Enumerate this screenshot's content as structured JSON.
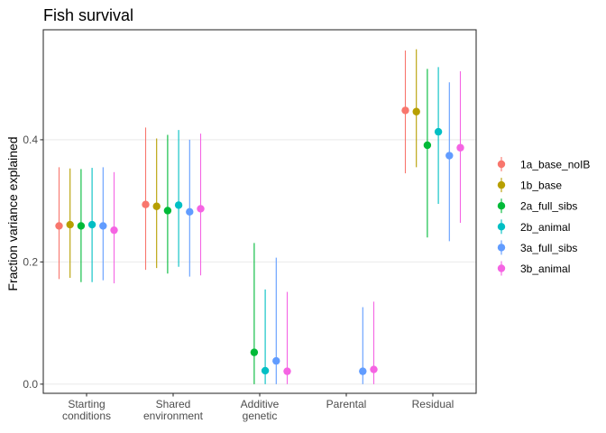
{
  "chart_data": {
    "type": "pointrange",
    "title": "Fish survival",
    "xlabel": "",
    "ylabel": "Fraction variance explained",
    "ylim": [
      -0.015,
      0.58
    ],
    "yticks": [
      0.0,
      0.2,
      0.4
    ],
    "ytick_labels": [
      "0.0",
      "0.2",
      "0.4"
    ],
    "grid": true,
    "legend_position": "right",
    "categories": [
      [
        "Starting",
        "conditions"
      ],
      [
        "Shared",
        "environment"
      ],
      [
        "Additive",
        "genetic"
      ],
      [
        "Parental"
      ],
      [
        "Residual"
      ]
    ],
    "series": [
      {
        "name": "1a_base_noIB",
        "color": "#F8766D",
        "points": [
          {
            "category": 0,
            "value": 0.259,
            "lower": 0.172,
            "upper": 0.355
          },
          {
            "category": 1,
            "value": 0.294,
            "lower": 0.187,
            "upper": 0.42
          },
          {
            "category": 4,
            "value": 0.448,
            "lower": 0.345,
            "upper": 0.546
          }
        ]
      },
      {
        "name": "1b_base",
        "color": "#B79F00",
        "points": [
          {
            "category": 0,
            "value": 0.261,
            "lower": 0.174,
            "upper": 0.353
          },
          {
            "category": 1,
            "value": 0.291,
            "lower": 0.19,
            "upper": 0.402
          },
          {
            "category": 4,
            "value": 0.446,
            "lower": 0.355,
            "upper": 0.548
          }
        ]
      },
      {
        "name": "2a_full_sibs",
        "color": "#00BA38",
        "points": [
          {
            "category": 0,
            "value": 0.259,
            "lower": 0.167,
            "upper": 0.352
          },
          {
            "category": 1,
            "value": 0.284,
            "lower": 0.181,
            "upper": 0.408
          },
          {
            "category": 2,
            "value": 0.052,
            "lower": 0.0,
            "upper": 0.231
          },
          {
            "category": 4,
            "value": 0.391,
            "lower": 0.24,
            "upper": 0.516
          }
        ]
      },
      {
        "name": "2b_animal",
        "color": "#00BFC4",
        "points": [
          {
            "category": 0,
            "value": 0.261,
            "lower": 0.167,
            "upper": 0.354
          },
          {
            "category": 1,
            "value": 0.293,
            "lower": 0.192,
            "upper": 0.416
          },
          {
            "category": 2,
            "value": 0.022,
            "lower": 0.0,
            "upper": 0.155
          },
          {
            "category": 4,
            "value": 0.413,
            "lower": 0.295,
            "upper": 0.519
          }
        ]
      },
      {
        "name": "3a_full_sibs",
        "color": "#619CFF",
        "points": [
          {
            "category": 0,
            "value": 0.259,
            "lower": 0.17,
            "upper": 0.355
          },
          {
            "category": 1,
            "value": 0.282,
            "lower": 0.176,
            "upper": 0.4
          },
          {
            "category": 2,
            "value": 0.038,
            "lower": 0.0,
            "upper": 0.207
          },
          {
            "category": 3,
            "value": 0.021,
            "lower": 0.0,
            "upper": 0.126
          },
          {
            "category": 4,
            "value": 0.374,
            "lower": 0.234,
            "upper": 0.494
          }
        ]
      },
      {
        "name": "3b_animal",
        "color": "#F564E3",
        "points": [
          {
            "category": 0,
            "value": 0.252,
            "lower": 0.165,
            "upper": 0.347
          },
          {
            "category": 1,
            "value": 0.287,
            "lower": 0.178,
            "upper": 0.41
          },
          {
            "category": 2,
            "value": 0.021,
            "lower": 0.0,
            "upper": 0.151
          },
          {
            "category": 3,
            "value": 0.024,
            "lower": 0.0,
            "upper": 0.135
          },
          {
            "category": 4,
            "value": 0.387,
            "lower": 0.264,
            "upper": 0.512
          }
        ]
      }
    ]
  }
}
